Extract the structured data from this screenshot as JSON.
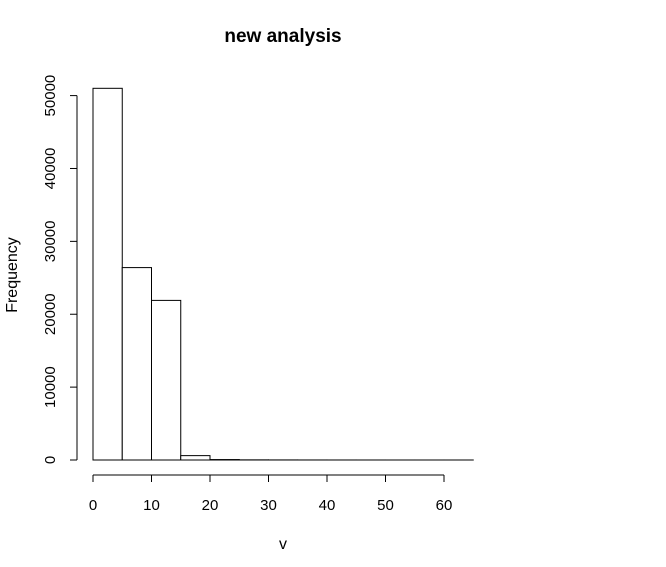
{
  "chart_data": {
    "type": "bar",
    "title": "new analysis",
    "xlabel": "v",
    "ylabel": "Frequency",
    "xlim": [
      0,
      65
    ],
    "ylim": [
      0,
      50000
    ],
    "bin_edges": [
      0,
      5,
      10,
      15,
      20,
      25,
      30,
      35,
      40,
      45,
      50,
      55,
      60,
      65
    ],
    "values": [
      51000,
      26400,
      21900,
      600,
      60,
      20,
      10,
      5,
      3,
      2,
      1,
      1,
      1
    ],
    "x_ticks": [
      0,
      10,
      20,
      30,
      40,
      50,
      60
    ],
    "x_tick_labels": [
      "0",
      "10",
      "20",
      "30",
      "40",
      "50",
      "60"
    ],
    "y_ticks": [
      0,
      10000,
      20000,
      30000,
      40000,
      50000
    ],
    "y_tick_labels": [
      "0",
      "10000",
      "20000",
      "30000",
      "40000",
      "50000"
    ],
    "grid": false,
    "colors": {
      "bar_fill": "#ffffff",
      "bar_stroke": "#000000"
    }
  }
}
